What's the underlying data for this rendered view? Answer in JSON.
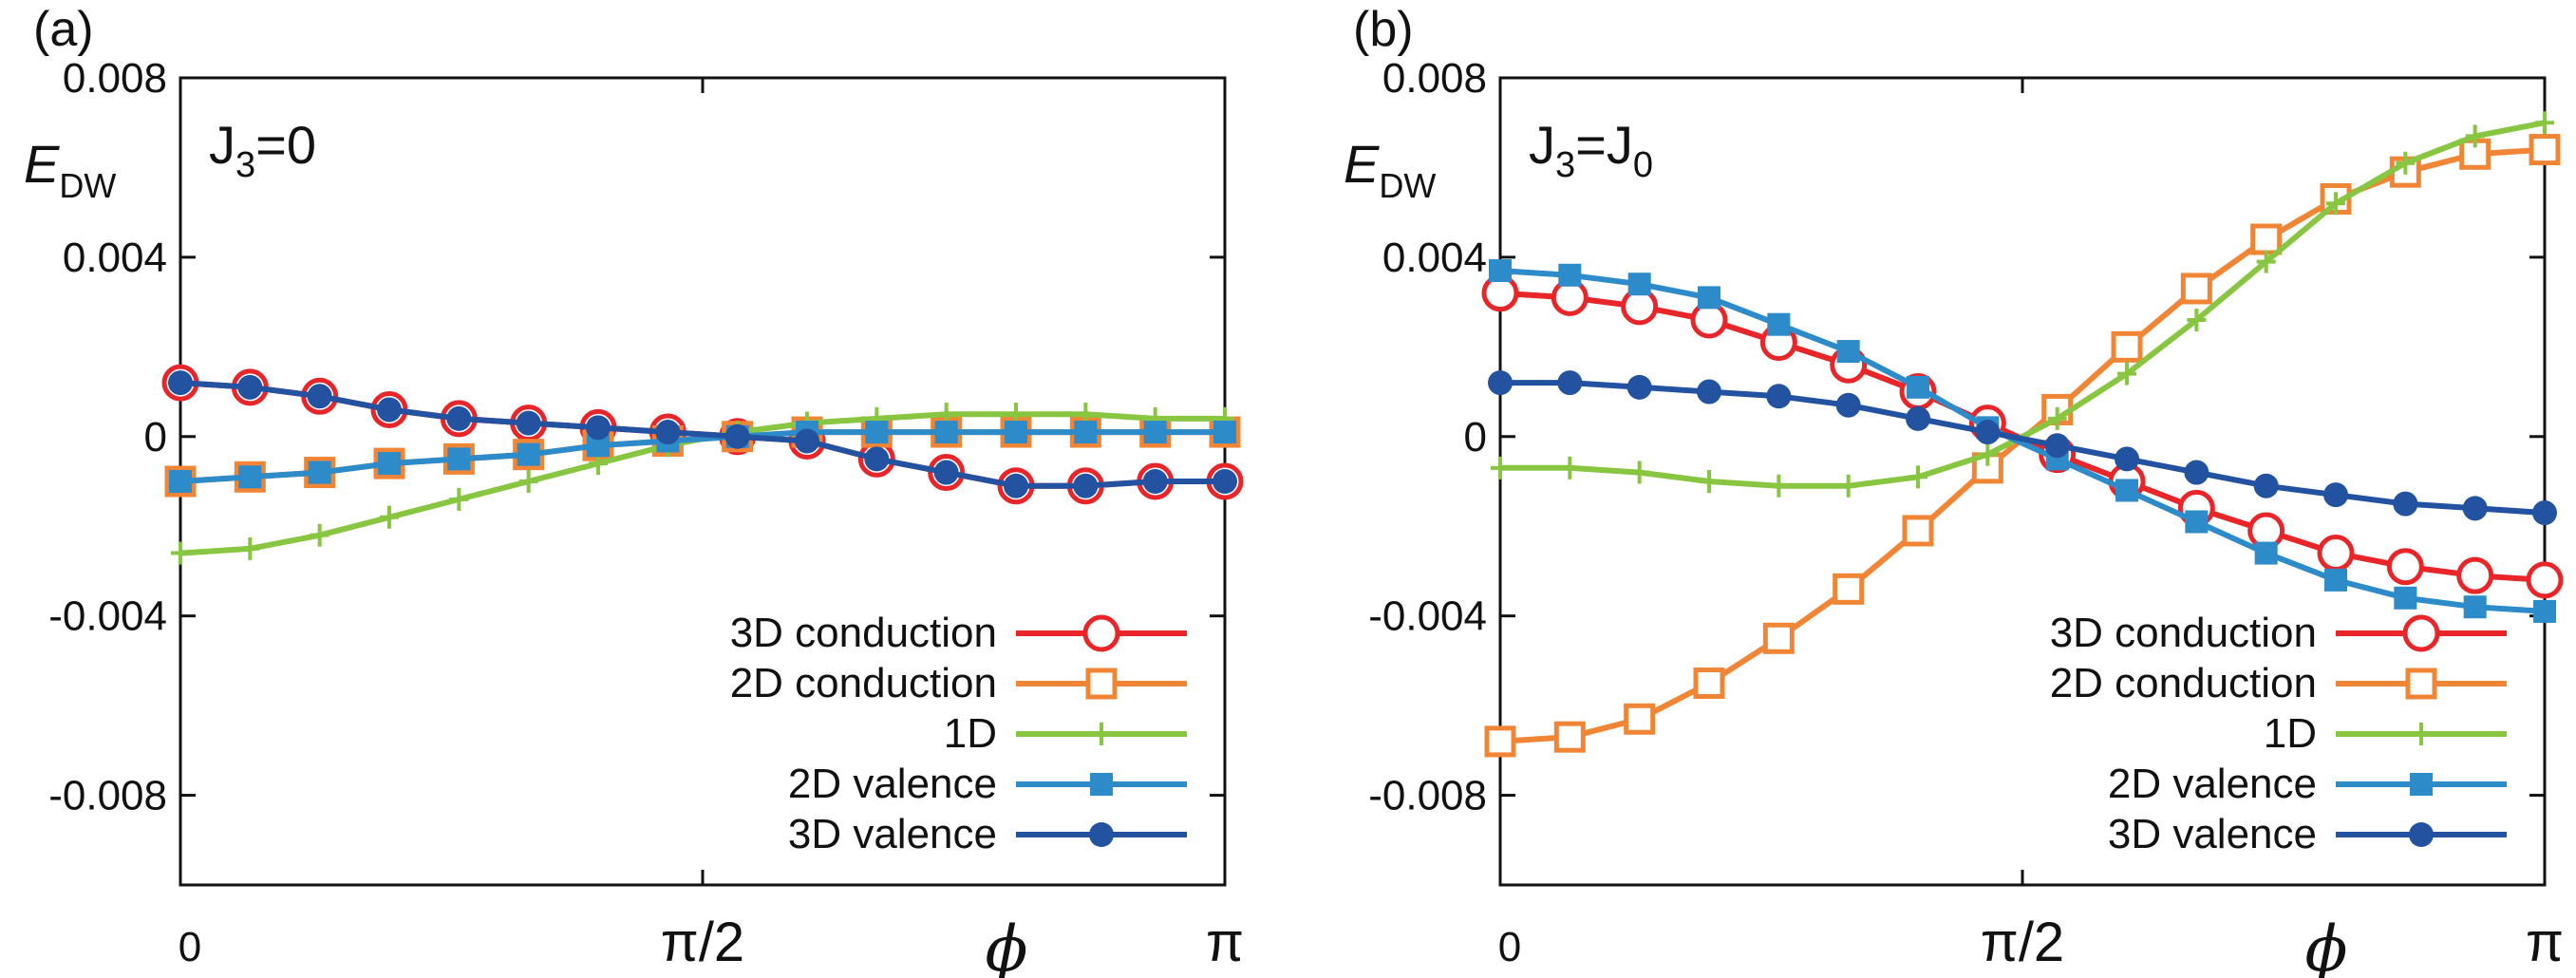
{
  "chart_data": [
    {
      "type": "line",
      "panel_label": "(a)",
      "annotation": {
        "base": "J",
        "sub": "3",
        "rest": "=0"
      },
      "ylabel": {
        "main": "E",
        "sub": "DW"
      },
      "xlabel": "ϕ",
      "xlim": [
        0,
        3.14159
      ],
      "ylim": [
        -0.01,
        0.008
      ],
      "yticks": [
        0.008,
        0.004,
        0,
        -0.004,
        -0.008
      ],
      "ytick_labels": [
        "0.008",
        "0.004",
        "0",
        "-0.004",
        "-0.008"
      ],
      "xticks": [
        0,
        1.5708,
        3.14159
      ],
      "xtick_labels": [
        "0",
        "π/2",
        "π"
      ],
      "x": [
        0,
        0.2094,
        0.4189,
        0.6283,
        0.8378,
        1.0472,
        1.2566,
        1.4661,
        1.6755,
        1.885,
        2.0944,
        2.3038,
        2.5133,
        2.7227,
        2.9322,
        3.1416
      ],
      "legend_position": "bottom-right",
      "series": [
        {
          "name": "3D conduction",
          "color": "#e8262a",
          "marker": "circle-open",
          "values": [
            0.0012,
            0.0011,
            0.0009,
            0.0006,
            0.0004,
            0.0003,
            0.0002,
            0.0001,
            0,
            -0.0001,
            -0.0005,
            -0.0008,
            -0.0011,
            -0.0011,
            -0.001,
            -0.001
          ]
        },
        {
          "name": "2D conduction",
          "color": "#f08535",
          "marker": "square-open",
          "values": [
            -0.001,
            -0.0009,
            -0.0008,
            -0.0006,
            -0.0005,
            -0.0004,
            -0.0002,
            -0.0001,
            0,
            0.0001,
            0.0001,
            0.0001,
            0.0001,
            0.0001,
            0.0001,
            0.0001
          ]
        },
        {
          "name": "1D",
          "color": "#88c540",
          "marker": "plus",
          "values": [
            -0.0026,
            -0.0025,
            -0.0022,
            -0.0018,
            -0.0014,
            -0.001,
            -0.0006,
            -0.0002,
            0.0001,
            0.0003,
            0.0004,
            0.0005,
            0.0005,
            0.0005,
            0.0004,
            0.0004
          ]
        },
        {
          "name": "2D valence",
          "color": "#2d8bc9",
          "marker": "square-filled",
          "values": [
            -0.001,
            -0.0009,
            -0.0008,
            -0.0006,
            -0.0005,
            -0.0004,
            -0.0002,
            -0.0001,
            0,
            0.0001,
            0.0001,
            0.0001,
            0.0001,
            0.0001,
            0.0001,
            0.0001
          ]
        },
        {
          "name": "3D valence",
          "color": "#2353a0",
          "marker": "circle-filled",
          "values": [
            0.0012,
            0.0011,
            0.0009,
            0.0006,
            0.0004,
            0.0003,
            0.0002,
            0.0001,
            0,
            -0.0001,
            -0.0005,
            -0.0008,
            -0.0011,
            -0.0011,
            -0.001,
            -0.001
          ]
        }
      ]
    },
    {
      "type": "line",
      "panel_label": "(b)",
      "annotation": {
        "base": "J",
        "sub": "3",
        "rest": "=J",
        "sub2": "0"
      },
      "ylabel": {
        "main": "E",
        "sub": "DW"
      },
      "xlabel": "ϕ",
      "xlim": [
        0,
        3.14159
      ],
      "ylim": [
        -0.01,
        0.008
      ],
      "yticks": [
        0.008,
        0.004,
        0,
        -0.004,
        -0.008
      ],
      "ytick_labels": [
        "0.008",
        "0.004",
        "0",
        "-0.004",
        "-0.008"
      ],
      "xticks": [
        0,
        1.5708,
        3.14159
      ],
      "xtick_labels": [
        "0",
        "π/2",
        "π"
      ],
      "x": [
        0,
        0.2094,
        0.4189,
        0.6283,
        0.8378,
        1.0472,
        1.2566,
        1.4661,
        1.6755,
        1.885,
        2.0944,
        2.3038,
        2.5133,
        2.7227,
        2.9322,
        3.1416
      ],
      "legend_position": "bottom-right",
      "series": [
        {
          "name": "3D conduction",
          "color": "#e8262a",
          "marker": "circle-open",
          "values": [
            0.0032,
            0.0031,
            0.0029,
            0.0026,
            0.0021,
            0.0016,
            0.001,
            0.0003,
            -0.0004,
            -0.001,
            -0.0016,
            -0.0021,
            -0.0026,
            -0.0029,
            -0.0031,
            -0.0032
          ]
        },
        {
          "name": "2D conduction",
          "color": "#f08535",
          "marker": "square-open",
          "values": [
            -0.0068,
            -0.0067,
            -0.0063,
            -0.0055,
            -0.0045,
            -0.0034,
            -0.0021,
            -0.0007,
            0.0006,
            0.002,
            0.0033,
            0.0044,
            0.0053,
            0.0059,
            0.0063,
            0.0064
          ]
        },
        {
          "name": "1D",
          "color": "#88c540",
          "marker": "plus",
          "values": [
            -0.0007,
            -0.0007,
            -0.0008,
            -0.001,
            -0.0011,
            -0.0011,
            -0.0009,
            -0.0004,
            0.0004,
            0.0014,
            0.0026,
            0.0039,
            0.0052,
            0.0061,
            0.0067,
            0.007
          ]
        },
        {
          "name": "2D valence",
          "color": "#2d8bc9",
          "marker": "square-filled",
          "values": [
            0.0037,
            0.0036,
            0.0034,
            0.0031,
            0.0025,
            0.0019,
            0.0011,
            0.0002,
            -0.0005,
            -0.0012,
            -0.0019,
            -0.0026,
            -0.0032,
            -0.0036,
            -0.0038,
            -0.0039
          ]
        },
        {
          "name": "3D valence",
          "color": "#2353a0",
          "marker": "circle-filled",
          "values": [
            0.0012,
            0.0012,
            0.0011,
            0.001,
            0.0009,
            0.0007,
            0.0004,
            0.0001,
            -0.0002,
            -0.0005,
            -0.0008,
            -0.0011,
            -0.0013,
            -0.0015,
            -0.0016,
            -0.0017
          ]
        }
      ]
    }
  ]
}
